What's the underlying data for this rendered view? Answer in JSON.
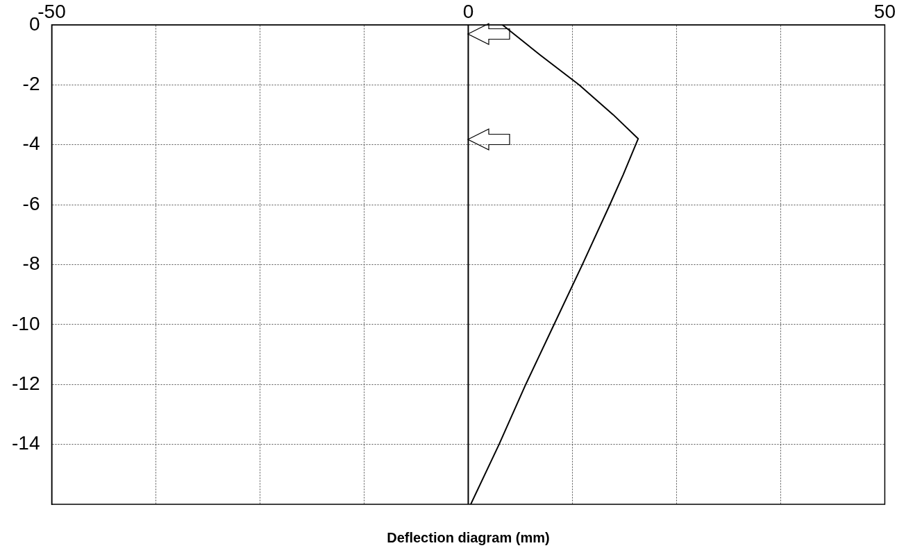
{
  "chart_data": {
    "type": "line",
    "xlabel": "Deflection diagram (mm)",
    "series": [
      {
        "color": "#000000",
        "x": [
          4.1,
          8.6,
          13.3,
          17.4,
          20.4,
          18.6,
          17.0,
          13.7,
          10.3,
          6.9,
          3.7,
          0.3
        ],
        "values": [
          0,
          -1,
          -2,
          -3,
          -3.8,
          -5,
          -6,
          -8,
          -10,
          -12,
          -14,
          -16
        ]
      }
    ],
    "xlim": [
      -50,
      50
    ],
    "xticks": [
      -50,
      {
        "value": -37.5,
        "label": null
      },
      {
        "value": -25,
        "label": null
      },
      {
        "value": -12.5,
        "label": null
      },
      0,
      {
        "value": 12.5,
        "label": null
      },
      {
        "value": 25,
        "label": null
      },
      {
        "value": 37.5,
        "label": null
      },
      50
    ],
    "ylim": [
      -16,
      0
    ],
    "yticks": [
      -14,
      -12,
      -10,
      -8,
      -6,
      -4,
      -2,
      0
    ],
    "ref_lines": [
      {
        "axis": "x",
        "value": 0,
        "color": "#000000"
      }
    ],
    "grid": true,
    "marker": "none",
    "legend": false
  }
}
